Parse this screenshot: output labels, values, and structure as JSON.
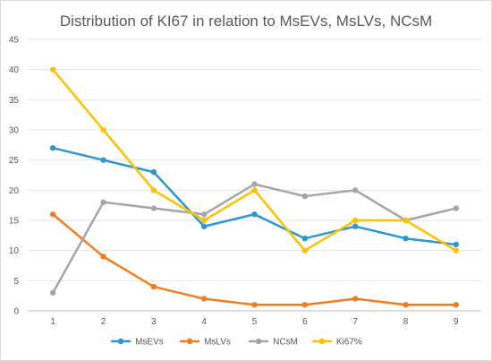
{
  "chart_data": {
    "type": "line",
    "title": "Distribution of KI67 in relation to MsEVs, MsLVs, NCsM",
    "xlabel": "",
    "ylabel": "",
    "x": [
      1,
      2,
      3,
      4,
      5,
      6,
      7,
      8,
      9
    ],
    "ylim": [
      0,
      45
    ],
    "yticks": [
      0,
      5,
      10,
      15,
      20,
      25,
      30,
      35,
      40,
      45
    ],
    "grid": true,
    "legend_position": "bottom",
    "series": [
      {
        "name": "MsEVs",
        "color": "#2f96d0",
        "values": [
          27,
          25,
          23,
          14,
          16,
          12,
          14,
          12,
          11
        ]
      },
      {
        "name": "MsLVs",
        "color": "#f47b20",
        "values": [
          16,
          9,
          4,
          2,
          1,
          1,
          2,
          1,
          1
        ]
      },
      {
        "name": "NCsM",
        "color": "#a5a5a5",
        "values": [
          3,
          18,
          17,
          16,
          21,
          19,
          20,
          15,
          17
        ]
      },
      {
        "name": "Ki67%",
        "color": "#ffc000",
        "values": [
          40,
          30,
          20,
          15,
          20,
          10,
          15,
          15,
          10
        ]
      }
    ]
  }
}
